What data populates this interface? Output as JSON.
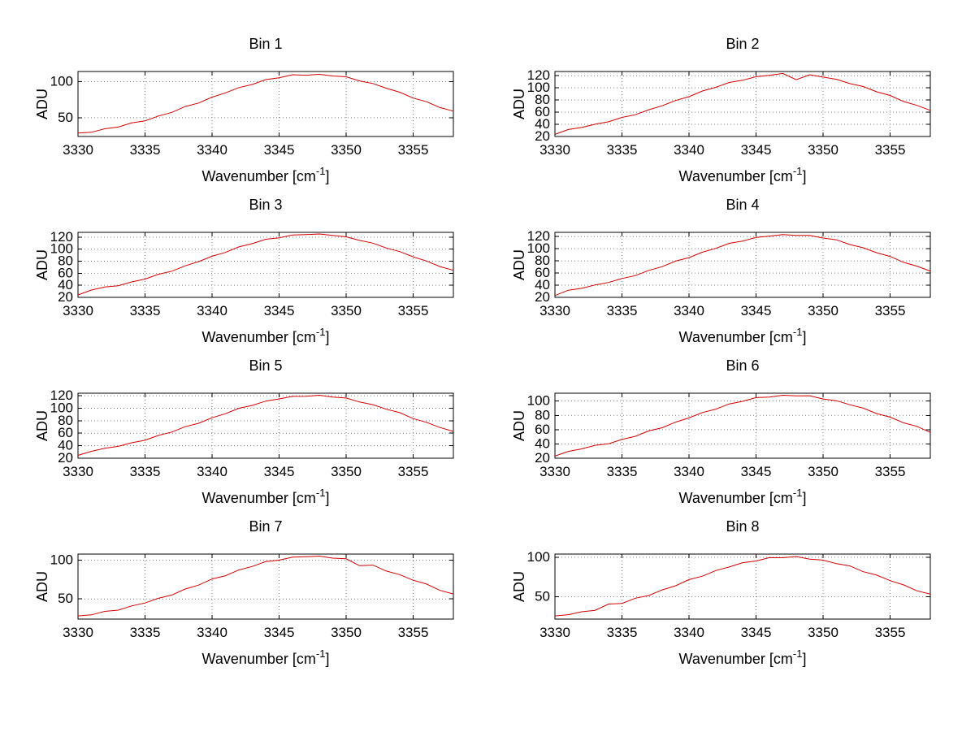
{
  "page": {
    "background": "#ffffff"
  },
  "figure": {
    "ylabel": "ADU",
    "xlabel_pre": "Wavenumber [cm",
    "xlabel_sup": "-1",
    "xlabel_post": "]",
    "line_color": "#d40000",
    "grid_color": "#808080",
    "axis_color": "#000000",
    "text_color": "#000000"
  },
  "x_values": [
    3330,
    3331,
    3332,
    3333,
    3334,
    3335,
    3336,
    3337,
    3338,
    3339,
    3340,
    3341,
    3342,
    3343,
    3344,
    3345,
    3346,
    3347,
    3348,
    3349,
    3350,
    3351,
    3352,
    3353,
    3354,
    3355,
    3356,
    3357,
    3358
  ],
  "chart_data": [
    {
      "type": "line",
      "title": "Bin 1",
      "xlabel": "Wavenumber [cm^-1]",
      "ylabel": "ADU",
      "xlim": [
        3330,
        3358
      ],
      "ylim": [
        24,
        114
      ],
      "xticks": [
        3330,
        3335,
        3340,
        3345,
        3350,
        3355
      ],
      "yticks": [
        50,
        100
      ],
      "grid": true,
      "y": [
        28.8,
        29.9,
        34.7,
        37.0,
        42.8,
        45.6,
        52.3,
        57.4,
        65.5,
        70.3,
        78.5,
        84.4,
        91.7,
        96.0,
        102.7,
        105.3,
        109.5,
        108.8,
        110.1,
        107.8,
        106.7,
        100.9,
        97.3,
        90.8,
        85.3,
        77.2,
        72.1,
        64.1,
        59.1
      ]
    },
    {
      "type": "line",
      "title": "Bin 2",
      "xlabel": "Wavenumber [cm^-1]",
      "ylabel": "ADU",
      "xlim": [
        3330,
        3358
      ],
      "ylim": [
        20,
        127
      ],
      "xticks": [
        3330,
        3335,
        3340,
        3345,
        3350,
        3355
      ],
      "yticks": [
        20,
        40,
        60,
        80,
        100,
        120
      ],
      "grid": true,
      "y": [
        23.5,
        31.5,
        34.8,
        40.2,
        44.2,
        51.4,
        55.8,
        64.0,
        70.6,
        79.2,
        85.6,
        94.9,
        100.9,
        109.0,
        112.6,
        118.4,
        120.6,
        123.8,
        113.5,
        121.7,
        117.8,
        114.2,
        107.1,
        102.2,
        93.6,
        87.5,
        77.6,
        71.2,
        62.9
      ]
    },
    {
      "type": "line",
      "title": "Bin 3",
      "xlabel": "Wavenumber [cm^-1]",
      "ylabel": "ADU",
      "xlim": [
        3330,
        3358
      ],
      "ylim": [
        20,
        128
      ],
      "xticks": [
        3330,
        3335,
        3340,
        3345,
        3350,
        3355
      ],
      "yticks": [
        20,
        40,
        60,
        80,
        100,
        120
      ],
      "grid": true,
      "y": [
        24.0,
        32.1,
        37.2,
        39.3,
        45.6,
        50.4,
        58.4,
        63.5,
        72.4,
        79.4,
        88.3,
        94.7,
        103.8,
        109.2,
        116.5,
        119.0,
        123.5,
        124.2,
        125.3,
        122.9,
        120.6,
        114.6,
        110.1,
        102.0,
        96.0,
        87.4,
        80.3,
        71.1,
        64.9
      ]
    },
    {
      "type": "line",
      "title": "Bin 4",
      "xlabel": "Wavenumber [cm^-1]",
      "ylabel": "ADU",
      "xlim": [
        3330,
        3358
      ],
      "ylim": [
        20,
        127
      ],
      "xticks": [
        3330,
        3335,
        3340,
        3345,
        3350,
        3355
      ],
      "yticks": [
        20,
        40,
        60,
        80,
        100,
        120
      ],
      "grid": true,
      "y": [
        23.0,
        31.8,
        34.9,
        40.4,
        44.5,
        51.0,
        55.9,
        64.4,
        70.5,
        79.7,
        85.4,
        94.3,
        100.7,
        108.9,
        112.7,
        118.6,
        120.9,
        123.4,
        122.0,
        122.1,
        117.7,
        114.7,
        106.9,
        101.6,
        93.4,
        87.4,
        77.7,
        71.4,
        63.2
      ]
    },
    {
      "type": "line",
      "title": "Bin 5",
      "xlabel": "Wavenumber [cm^-1]",
      "ylabel": "ADU",
      "xlim": [
        3330,
        3358
      ],
      "ylim": [
        20,
        124
      ],
      "xticks": [
        3330,
        3335,
        3340,
        3345,
        3350,
        3355
      ],
      "yticks": [
        20,
        40,
        60,
        80,
        100,
        120
      ],
      "grid": true,
      "y": [
        24.5,
        31.0,
        35.8,
        39.0,
        44.7,
        48.7,
        56.5,
        61.9,
        70.5,
        75.9,
        84.7,
        91.3,
        100.0,
        104.5,
        111.4,
        114.9,
        118.9,
        119.0,
        120.7,
        117.9,
        116.3,
        109.9,
        105.7,
        98.4,
        92.9,
        83.5,
        77.4,
        69.1,
        62.9
      ]
    },
    {
      "type": "line",
      "title": "Bin 6",
      "xlabel": "Wavenumber [cm^-1]",
      "ylabel": "ADU",
      "xlim": [
        3330,
        3358
      ],
      "ylim": [
        20,
        111
      ],
      "xticks": [
        3330,
        3335,
        3340,
        3345,
        3350,
        3355
      ],
      "yticks": [
        20,
        40,
        60,
        80,
        100
      ],
      "grid": true,
      "y": [
        23.0,
        29.5,
        33.1,
        38.1,
        40.2,
        46.3,
        50.7,
        58.2,
        62.6,
        70.5,
        76.4,
        83.9,
        88.7,
        96.0,
        99.6,
        104.9,
        105.5,
        108.1,
        107.2,
        107.5,
        102.9,
        100.5,
        94.8,
        90.1,
        82.5,
        77.6,
        69.6,
        64.6,
        56.2
      ]
    },
    {
      "type": "line",
      "title": "Bin 7",
      "xlabel": "Wavenumber [cm^-1]",
      "ylabel": "ADU",
      "xlim": [
        3330,
        3358
      ],
      "ylim": [
        24,
        108
      ],
      "xticks": [
        3330,
        3335,
        3340,
        3345,
        3350,
        3355
      ],
      "yticks": [
        50,
        100
      ],
      "grid": true,
      "y": [
        28.1,
        29.5,
        34.0,
        35.5,
        41.0,
        44.8,
        50.9,
        55.1,
        62.9,
        67.9,
        75.9,
        80.1,
        87.4,
        92.0,
        98.2,
        100.1,
        104.0,
        104.5,
        105.4,
        102.7,
        101.9,
        93.0,
        93.7,
        86.1,
        81.4,
        74.2,
        69.3,
        61.1,
        56.4
      ]
    },
    {
      "type": "line",
      "title": "Bin 8",
      "xlabel": "Wavenumber [cm^-1]",
      "ylabel": "ADU",
      "xlim": [
        3330,
        3358
      ],
      "ylim": [
        22,
        104
      ],
      "xticks": [
        3330,
        3335,
        3340,
        3345,
        3350,
        3355
      ],
      "yticks": [
        50,
        100
      ],
      "grid": true,
      "y": [
        26.0,
        27.5,
        31.2,
        33.1,
        41.0,
        41.8,
        48.3,
        51.7,
        58.8,
        64.0,
        71.8,
        76.1,
        83.2,
        87.7,
        93.1,
        95.3,
        99.5,
        99.4,
        100.9,
        97.6,
        96.4,
        91.9,
        89.0,
        81.8,
        77.5,
        70.5,
        65.2,
        57.7,
        53.6
      ]
    }
  ]
}
